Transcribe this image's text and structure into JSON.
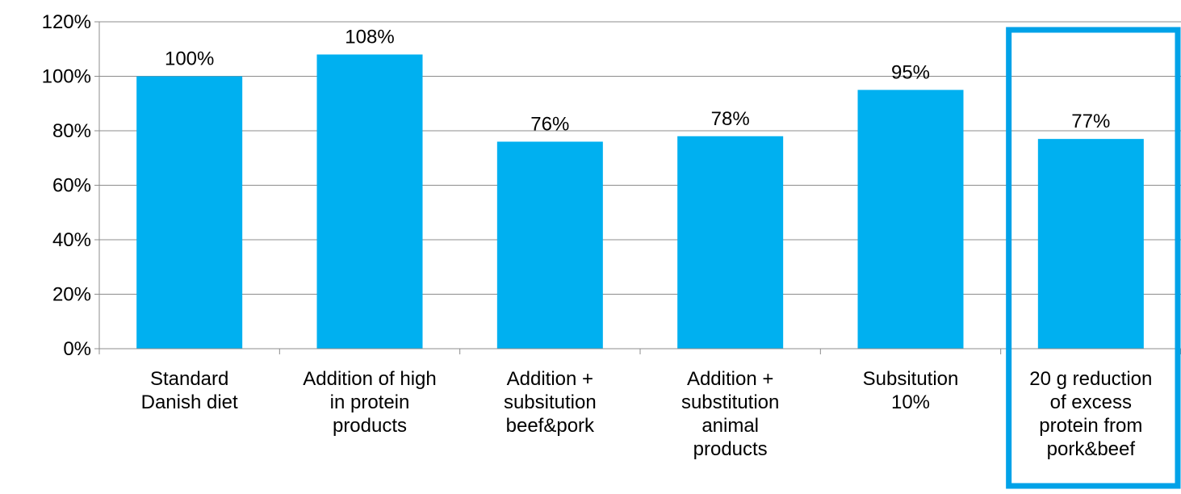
{
  "chart_data": {
    "type": "bar",
    "categories": [
      [
        "Standard",
        "Danish diet"
      ],
      [
        "Addition of high",
        "in protein",
        "products"
      ],
      [
        "Addition +",
        "subsitution",
        "beef&pork"
      ],
      [
        "Addition +",
        "substitution",
        "animal",
        "products"
      ],
      [
        "Subsitution",
        "10%"
      ],
      [
        "20 g reduction",
        "of excess",
        "protein from",
        "pork&beef"
      ]
    ],
    "values": [
      100,
      108,
      76,
      78,
      95,
      77
    ],
    "data_labels": [
      "100%",
      "108%",
      "76%",
      "78%",
      "95%",
      "77%"
    ],
    "y_ticks": [
      "0%",
      "20%",
      "40%",
      "60%",
      "80%",
      "100%",
      "120%"
    ],
    "ylim": [
      0,
      120
    ],
    "grid": true,
    "title": "",
    "xlabel": "",
    "ylabel": "",
    "bar_color": "#00B0F0",
    "highlight": {
      "category_index": 5,
      "color": "#00A2E8"
    }
  }
}
